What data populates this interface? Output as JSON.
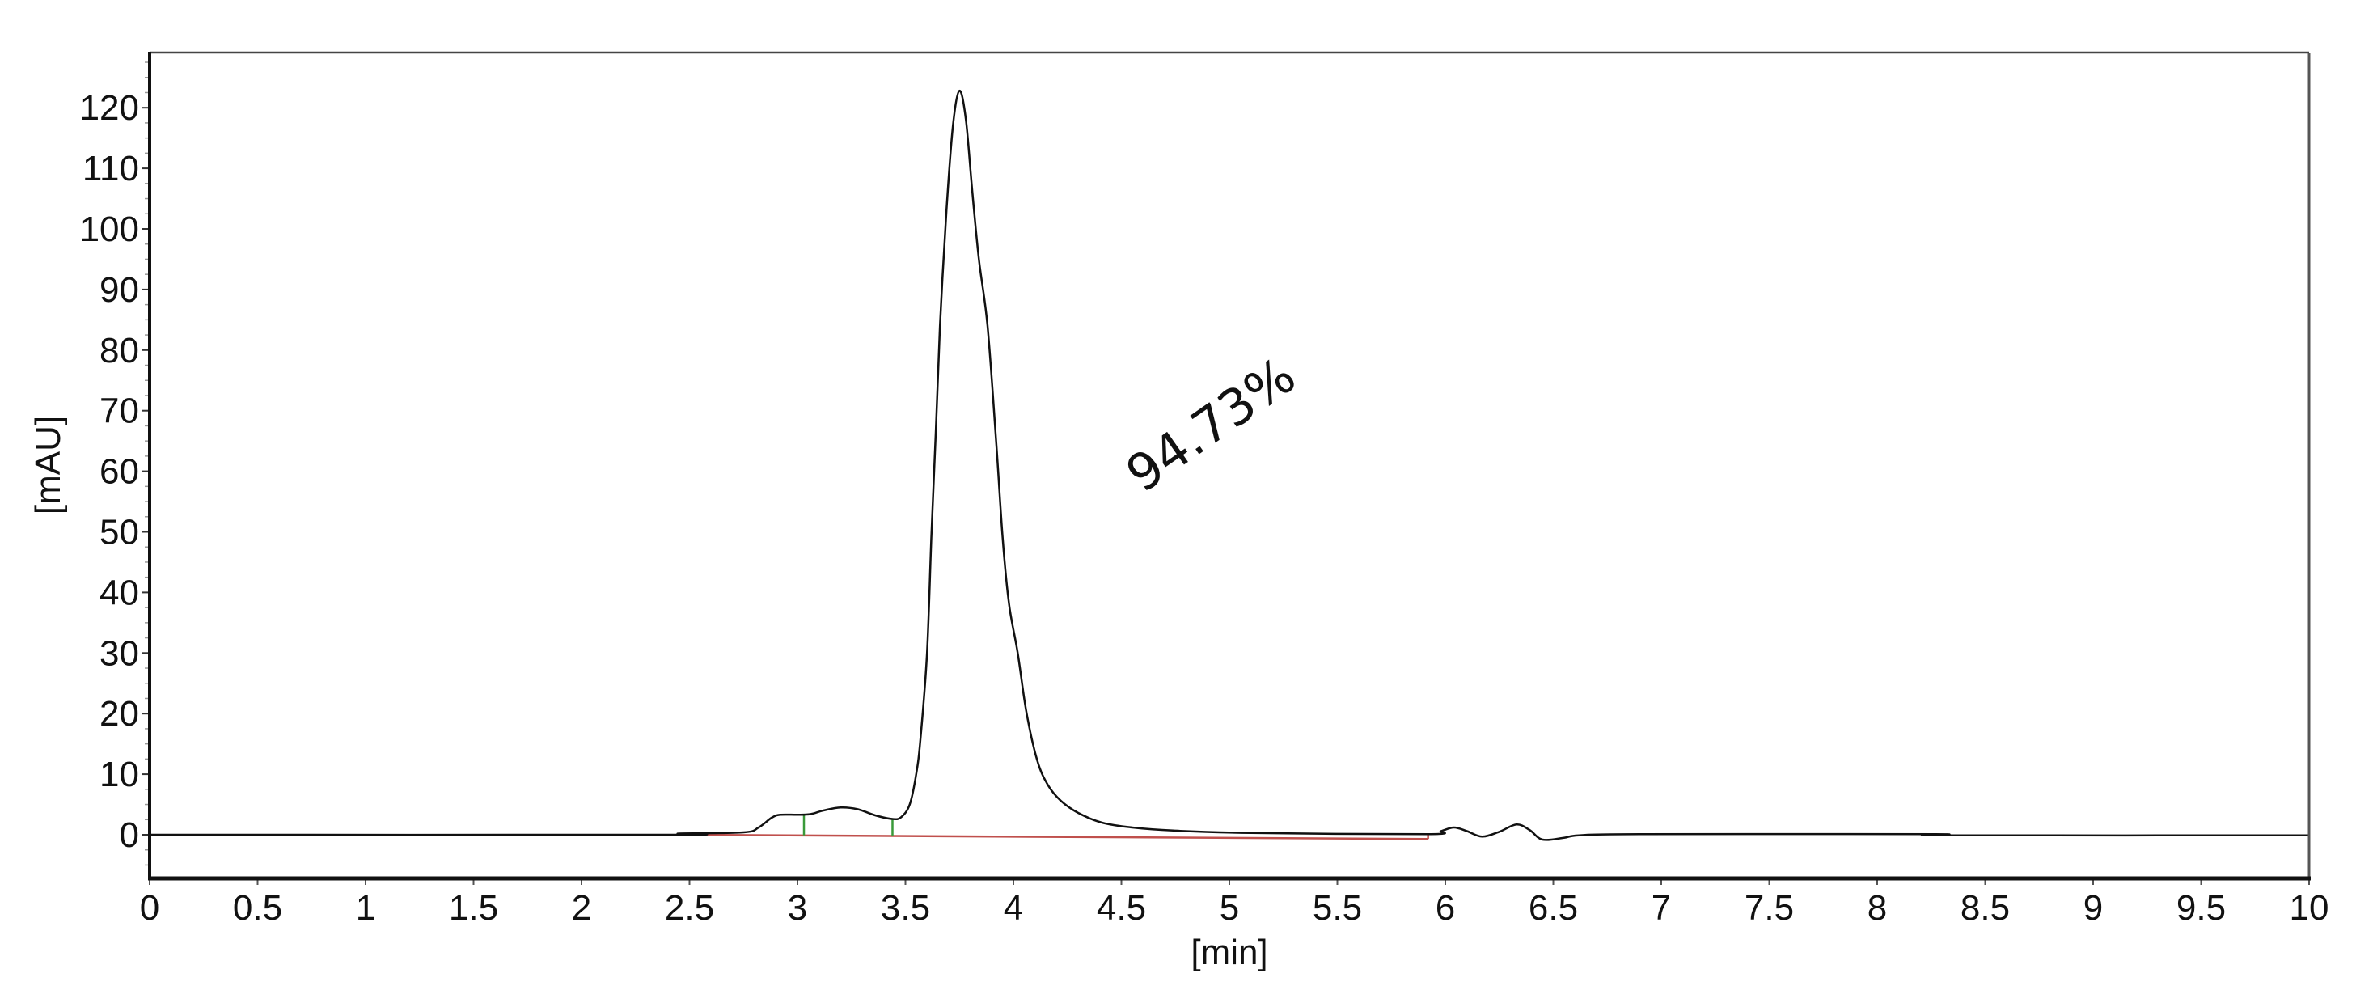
{
  "chart_data": {
    "type": "line",
    "title": "",
    "xlabel": "[min]",
    "ylabel": "[mAU]",
    "xlim": [
      0,
      10
    ],
    "ylim": [
      -7.2,
      129
    ],
    "grid": false,
    "legend": null,
    "x_ticks": [
      "0",
      "0.5",
      "1",
      "1.5",
      "2",
      "2.5",
      "3",
      "3.5",
      "4",
      "4.5",
      "5",
      "5.5",
      "6",
      "6.5",
      "7",
      "7.5",
      "8",
      "8.5",
      "9",
      "9.5",
      "10"
    ],
    "y_ticks": [
      "0",
      "10",
      "20",
      "30",
      "40",
      "50",
      "60",
      "70",
      "80",
      "90",
      "100",
      "110",
      "120"
    ],
    "annotations": [
      {
        "text": "94.73%",
        "x": 4.96,
        "y": 68,
        "rotation": -35
      }
    ],
    "series": [
      {
        "name": "chromatogram",
        "color": "#111111",
        "x": [
          0,
          2.4,
          2.45,
          2.75,
          2.82,
          2.88,
          2.92,
          3.0,
          3.06,
          3.12,
          3.2,
          3.28,
          3.36,
          3.44,
          3.48,
          3.52,
          3.55,
          3.57,
          3.6,
          3.62,
          3.64,
          3.66,
          3.69,
          3.72,
          3.75,
          3.78,
          3.81,
          3.84,
          3.88,
          3.92,
          3.95,
          3.98,
          4.02,
          4.06,
          4.11,
          4.16,
          4.22,
          4.3,
          4.41,
          4.55,
          4.74,
          5.1,
          5.92,
          5.98,
          6.04,
          6.1,
          6.17,
          6.25,
          6.33,
          6.39,
          6.45,
          6.55,
          6.62,
          6.9,
          8.27,
          8.3,
          10
        ],
        "values": [
          0,
          0,
          0.2,
          0.4,
          1.2,
          2.8,
          3.3,
          3.3,
          3.4,
          4.0,
          4.5,
          4.2,
          3.2,
          2.6,
          2.9,
          5,
          10,
          16,
          30,
          49,
          66,
          84,
          103,
          117,
          122.8,
          118,
          106,
          95,
          84,
          65,
          49,
          38,
          30,
          20.3,
          12.3,
          8.2,
          5.6,
          3.6,
          2.0,
          1.2,
          0.7,
          0.3,
          0.1,
          0.6,
          1.2,
          0.6,
          -0.3,
          0.5,
          1.7,
          0.8,
          -0.8,
          -0.5,
          -0.1,
          0.1,
          0.1,
          -0.1,
          -0.1
        ]
      },
      {
        "name": "integration-baseline",
        "color": "#c0504d",
        "x": [
          2.44,
          5.92
        ],
        "values": [
          0,
          -0.7
        ]
      }
    ],
    "peak_markers": [
      {
        "x": 3.03,
        "top": 3.3,
        "bottom": -0.1,
        "color": "#3a9a3a"
      },
      {
        "x": 3.44,
        "top": 2.6,
        "bottom": -0.2,
        "color": "#3a9a3a"
      },
      {
        "x": 5.92,
        "top": 0.1,
        "bottom": -0.7,
        "color": "#c0504d"
      }
    ],
    "main_peak": {
      "retention_time": 3.75,
      "height": 122.8,
      "area_percent": "94.73%"
    }
  }
}
